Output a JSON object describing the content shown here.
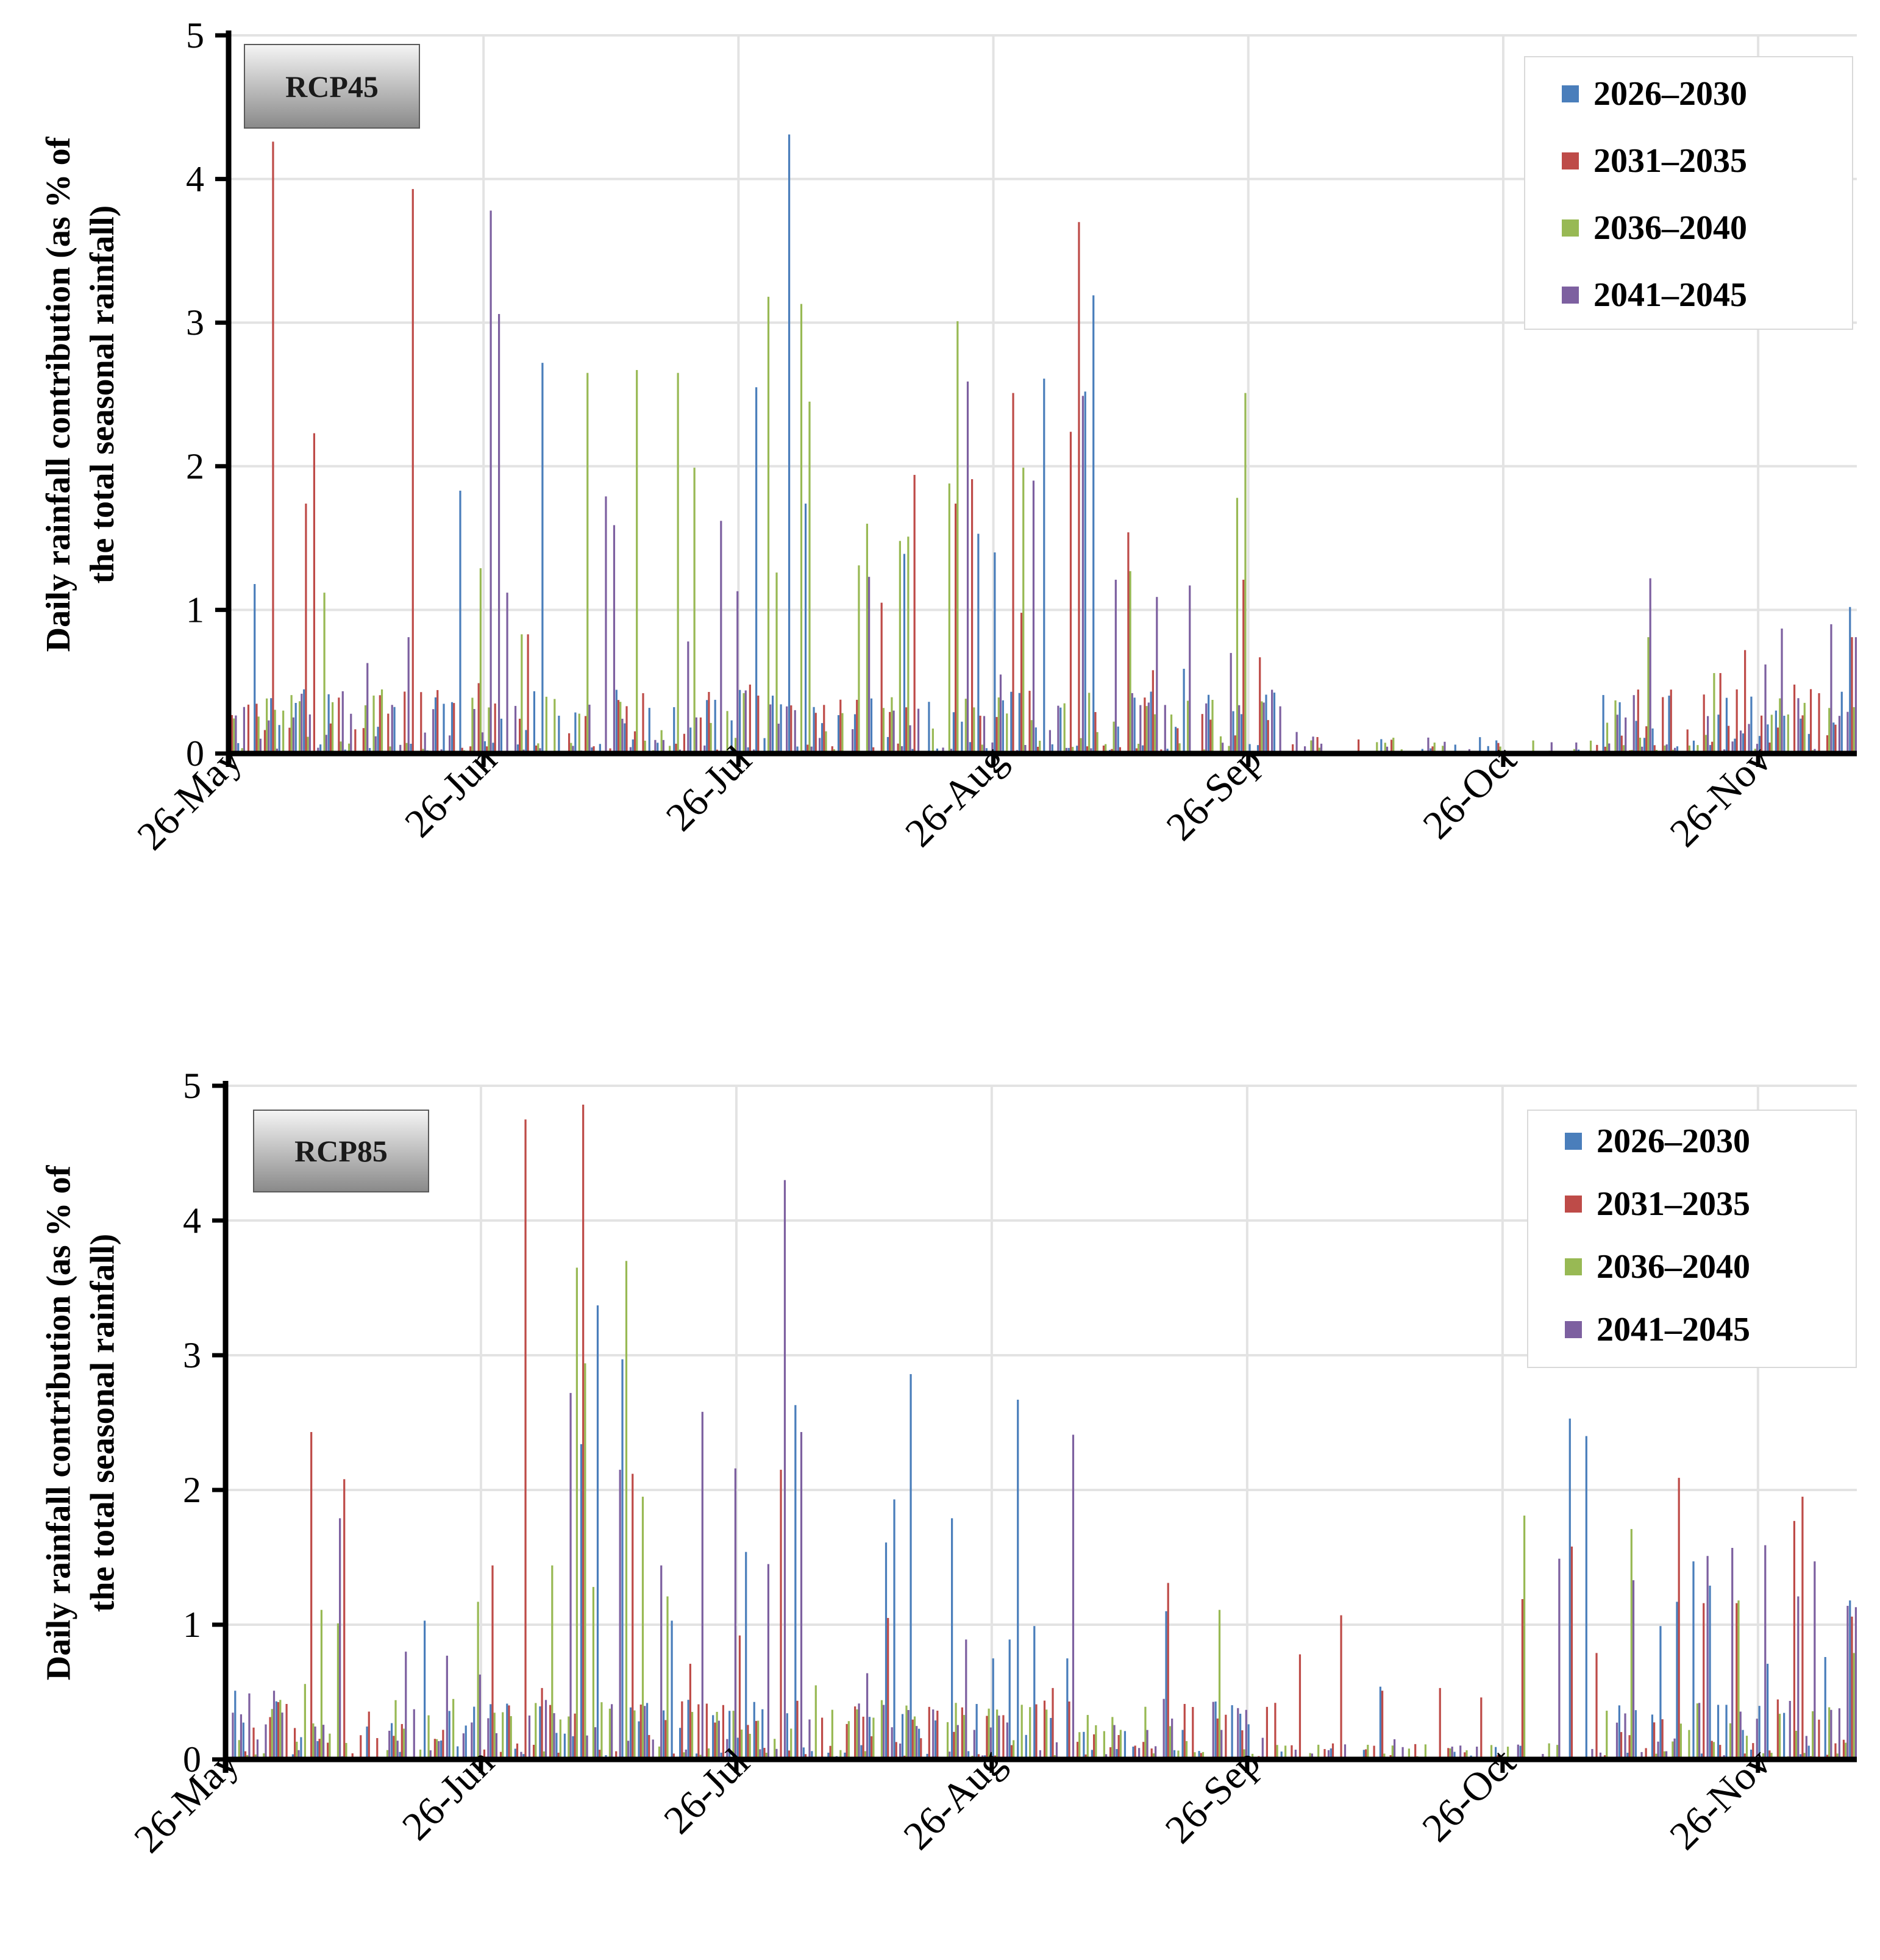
{
  "chart_data": [
    {
      "type": "bar",
      "ylabel": "Daily rainfall contribution (as % of the total seasonal rainfall)",
      "ylim": [
        0,
        5
      ],
      "yticks": [
        0,
        1,
        2,
        3,
        4,
        5
      ],
      "xticks": [
        "26-May",
        "26-Jun",
        "26-Jul",
        "26-Aug",
        "26-Sep",
        "26-Oct",
        "26-Nov"
      ],
      "grid": true,
      "legend_position": "top-right",
      "annotation": "RCP45",
      "series": [
        {
          "name": "2026–2030",
          "color": "#4a7ebb",
          "peaks": [
            [
              3,
              1.18
            ],
            [
              28,
              1.83
            ],
            [
              38,
              2.72
            ],
            [
              64,
              2.55
            ],
            [
              68,
              4.31
            ],
            [
              70,
              1.74
            ],
            [
              82,
              1.39
            ],
            [
              91,
              1.53
            ],
            [
              93,
              1.4
            ],
            [
              99,
              2.61
            ],
            [
              104,
              2.52
            ],
            [
              105,
              3.19
            ],
            [
              116,
              0.59
            ],
            [
              176,
              0.05
            ],
            [
              184,
              0.14
            ],
            [
              196,
              0.43
            ],
            [
              197,
              1.02
            ]
          ]
        },
        {
          "name": "2031–2035",
          "color": "#be4b48",
          "peaks": [
            [
              5,
              4.26
            ],
            [
              9,
              1.74
            ],
            [
              10,
              2.23
            ],
            [
              22,
              3.93
            ],
            [
              30,
              0.49
            ],
            [
              36,
              0.83
            ],
            [
              50,
              0.42
            ],
            [
              63,
              0.48
            ],
            [
              79,
              1.05
            ],
            [
              83,
              1.94
            ],
            [
              88,
              1.74
            ],
            [
              90,
              1.91
            ],
            [
              95,
              2.51
            ],
            [
              96,
              0.98
            ],
            [
              102,
              2.24
            ],
            [
              103,
              3.7
            ],
            [
              109,
              1.54
            ],
            [
              112,
              0.58
            ],
            [
              123,
              1.21
            ],
            [
              125,
              0.67
            ],
            [
              166,
              0.06
            ],
            [
              181,
              0.56
            ],
            [
              184,
              0.72
            ],
            [
              190,
              0.48
            ],
            [
              193,
              0.42
            ],
            [
              197,
              0.81
            ]
          ]
        },
        {
          "name": "2036–2040",
          "color": "#98b954",
          "peaks": [
            [
              11,
              1.12
            ],
            [
              30,
              1.29
            ],
            [
              35,
              0.83
            ],
            [
              43,
              2.65
            ],
            [
              47,
              0.36
            ],
            [
              49,
              2.67
            ],
            [
              54,
              2.65
            ],
            [
              56,
              1.99
            ],
            [
              65,
              3.18
            ],
            [
              66,
              1.26
            ],
            [
              69,
              3.13
            ],
            [
              70,
              2.45
            ],
            [
              76,
              1.31
            ],
            [
              77,
              1.6
            ],
            [
              81,
              1.48
            ],
            [
              82,
              1.51
            ],
            [
              87,
              1.88
            ],
            [
              88,
              3.01
            ],
            [
              96,
              1.99
            ],
            [
              109,
              1.27
            ],
            [
              122,
              1.78
            ],
            [
              123,
              2.51
            ],
            [
              168,
              0.37
            ],
            [
              172,
              0.81
            ],
            [
              180,
              0.56
            ]
          ]
        },
        {
          "name": "2041–2045",
          "color": "#7d60a0",
          "peaks": [
            [
              16,
              0.63
            ],
            [
              21,
              0.81
            ],
            [
              29,
              0.31
            ],
            [
              31,
              3.78
            ],
            [
              32,
              3.06
            ],
            [
              33,
              1.12
            ],
            [
              45,
              1.79
            ],
            [
              46,
              1.59
            ],
            [
              55,
              0.78
            ],
            [
              59,
              1.62
            ],
            [
              61,
              1.13
            ],
            [
              77,
              1.23
            ],
            [
              89,
              2.59
            ],
            [
              93,
              0.55
            ],
            [
              97,
              1.9
            ],
            [
              103,
              2.49
            ],
            [
              107,
              1.21
            ],
            [
              112,
              1.09
            ],
            [
              116,
              1.17
            ],
            [
              121,
              0.7
            ],
            [
              129,
              0.15
            ],
            [
              172,
              1.22
            ],
            [
              186,
              0.62
            ],
            [
              188,
              0.87
            ],
            [
              194,
              0.9
            ],
            [
              197,
              0.81
            ]
          ]
        }
      ]
    },
    {
      "type": "bar",
      "ylabel": "Daily rainfall contribution (as % of the total seasonal rainfall)",
      "ylim": [
        0,
        5
      ],
      "yticks": [
        0,
        1,
        2,
        3,
        4,
        5
      ],
      "xticks": [
        "26-May",
        "26-Jun",
        "26-Jul",
        "26-Aug",
        "26-Sep",
        "26-Oct",
        "26-Nov"
      ],
      "grid": true,
      "legend_position": "top-right",
      "annotation": "RCP85",
      "series": [
        {
          "name": "2026–2030",
          "color": "#4a7ebb",
          "peaks": [
            [
              1,
              0.51
            ],
            [
              24,
              1.03
            ],
            [
              32,
              0.41
            ],
            [
              43,
              2.34
            ],
            [
              45,
              3.37
            ],
            [
              48,
              2.97
            ],
            [
              54,
              1.03
            ],
            [
              63,
              1.54
            ],
            [
              69,
              2.63
            ],
            [
              80,
              1.61
            ],
            [
              81,
              1.93
            ],
            [
              83,
              2.86
            ],
            [
              88,
              1.79
            ],
            [
              93,
              0.75
            ],
            [
              95,
              0.89
            ],
            [
              96,
              2.67
            ],
            [
              98,
              0.99
            ],
            [
              102,
              0.75
            ],
            [
              114,
              1.1
            ],
            [
              140,
              0.54
            ],
            [
              163,
              2.53
            ],
            [
              165,
              2.4
            ],
            [
              174,
              0.99
            ],
            [
              176,
              1.17
            ],
            [
              178,
              1.47
            ],
            [
              180,
              1.29
            ],
            [
              187,
              0.71
            ],
            [
              194,
              0.76
            ],
            [
              197,
              1.18
            ]
          ]
        },
        {
          "name": "2031–2035",
          "color": "#be4b48",
          "peaks": [
            [
              10,
              2.43
            ],
            [
              14,
              2.08
            ],
            [
              32,
              1.44
            ],
            [
              36,
              4.75
            ],
            [
              38,
              0.53
            ],
            [
              43,
              4.86
            ],
            [
              49,
              2.12
            ],
            [
              56,
              0.71
            ],
            [
              62,
              0.92
            ],
            [
              67,
              2.15
            ],
            [
              72,
              0.31
            ],
            [
              80,
              1.05
            ],
            [
              85,
              0.39
            ],
            [
              100,
              0.53
            ],
            [
              102,
              0.43
            ],
            [
              114,
              1.31
            ],
            [
              126,
              0.39
            ],
            [
              130,
              0.78
            ],
            [
              135,
              1.07
            ],
            [
              140,
              0.51
            ],
            [
              147,
              0.53
            ],
            [
              152,
              0.46
            ],
            [
              157,
              1.19
            ],
            [
              163,
              1.58
            ],
            [
              166,
              0.79
            ],
            [
              176,
              2.09
            ],
            [
              179,
              1.16
            ],
            [
              183,
              1.16
            ],
            [
              190,
              1.77
            ],
            [
              191,
              1.95
            ],
            [
              197,
              1.06
            ]
          ]
        },
        {
          "name": "2036–2040",
          "color": "#98b954",
          "peaks": [
            [
              9,
              0.56
            ],
            [
              11,
              1.11
            ],
            [
              13,
              1.01
            ],
            [
              20,
              0.44
            ],
            [
              30,
              1.17
            ],
            [
              39,
              1.44
            ],
            [
              42,
              3.65
            ],
            [
              43,
              2.94
            ],
            [
              44,
              1.28
            ],
            [
              48,
              3.7
            ],
            [
              50,
              1.95
            ],
            [
              53,
              1.21
            ],
            [
              71,
              0.55
            ],
            [
              78,
              0.31
            ],
            [
              82,
              0.4
            ],
            [
              89,
              0.33
            ],
            [
              99,
              0.37
            ],
            [
              106,
              0.21
            ],
            [
              120,
              1.11
            ],
            [
              157,
              1.81
            ],
            [
              170,
              1.71
            ],
            [
              183,
              1.18
            ],
            [
              197,
              0.79
            ]
          ]
        },
        {
          "name": "2041–2045",
          "color": "#7d60a0",
          "peaks": [
            [
              2,
              0.49
            ],
            [
              5,
              0.51
            ],
            [
              13,
              1.79
            ],
            [
              21,
              0.8
            ],
            [
              26,
              0.77
            ],
            [
              30,
              0.63
            ],
            [
              41,
              2.72
            ],
            [
              47,
              2.15
            ],
            [
              52,
              1.44
            ],
            [
              57,
              2.58
            ],
            [
              61,
              2.16
            ],
            [
              65,
              1.45
            ],
            [
              67,
              4.3
            ],
            [
              69,
              2.43
            ],
            [
              77,
              0.64
            ],
            [
              89,
              0.89
            ],
            [
              102,
              2.41
            ],
            [
              141,
              0.15
            ],
            [
              161,
              1.49
            ],
            [
              170,
              1.33
            ],
            [
              179,
              1.51
            ],
            [
              182,
              1.57
            ],
            [
              186,
              1.59
            ],
            [
              190,
              1.21
            ],
            [
              192,
              1.47
            ],
            [
              196,
              1.14
            ],
            [
              197,
              1.13
            ]
          ]
        }
      ]
    }
  ]
}
